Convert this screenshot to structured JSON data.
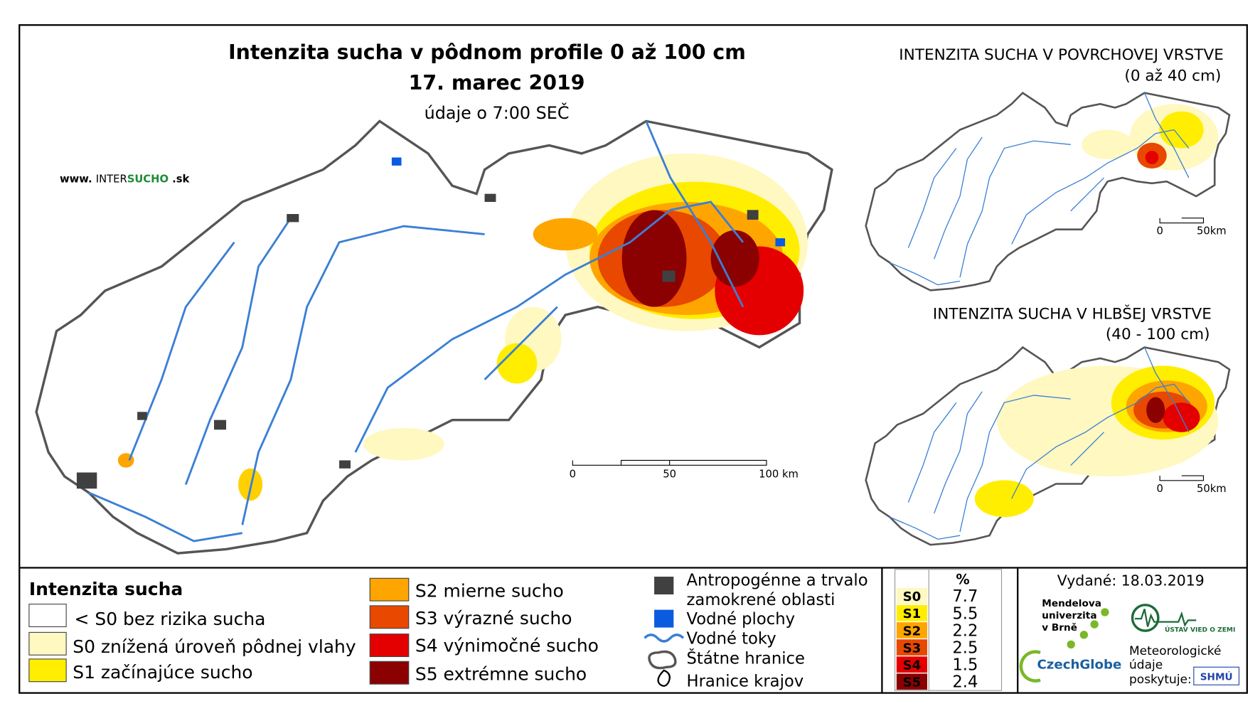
{
  "header": {
    "title": "Intenzita sucha v pôdnom profile 0 až 100 cm",
    "date": "17. marec 2019",
    "subtitle": "údaje o 7:00 SEČ"
  },
  "website": {
    "prefix": "www.",
    "name1": "INTER",
    "name2": "SUCHO",
    "suffix": ".sk"
  },
  "main_map": {
    "scale_labels": [
      "0",
      "50",
      "100 km"
    ]
  },
  "insets": [
    {
      "title": "INTENZITA SUCHA V POVRCHOVEJ VRSTVE",
      "subtitle": "(0 až 40 cm)",
      "scale_labels": [
        "0",
        "50km"
      ]
    },
    {
      "title": "INTENZITA SUCHA V HLBŠEJ VRSTVE",
      "subtitle": "(40 - 100 cm)",
      "scale_labels": [
        "0",
        "50km"
      ]
    }
  ],
  "legend": {
    "title": "Intenzita sucha",
    "classes": [
      "< S0 bez rizika sucha",
      "S0 znížená úroveň pôdnej vlahy",
      "S1 začínajúce sucho",
      "S2 mierne sucho",
      "S3 výrazné sucho",
      "S4 výnimočné sucho",
      "S5 extrémne sucho"
    ],
    "features": [
      [
        "Antropogénne a trvalo",
        "zamokrené oblasti"
      ],
      [
        "Vodné plochy"
      ],
      [
        "Vodné toky"
      ],
      [
        "Štátne hranice"
      ],
      [
        "Hranice krajov"
      ]
    ]
  },
  "table": {
    "header": "%",
    "rows": [
      [
        "S0",
        7.7
      ],
      [
        "S1",
        5.5
      ],
      [
        "S2",
        2.2
      ],
      [
        "S3",
        2.5
      ],
      [
        "S4",
        1.5
      ],
      [
        "S5",
        2.4
      ]
    ]
  },
  "issued": "Vydané: 18.03.2019",
  "logos": {
    "mendel": [
      "Mendelova",
      "univerzita",
      "v Brně"
    ],
    "czechglobe": "CzechGlobe",
    "uvz": "ÚSTAV VIED O ZEMI",
    "provider": [
      "Meteorologické",
      "údaje",
      "poskytuje:"
    ],
    "shmu": "SHMÚ"
  }
}
